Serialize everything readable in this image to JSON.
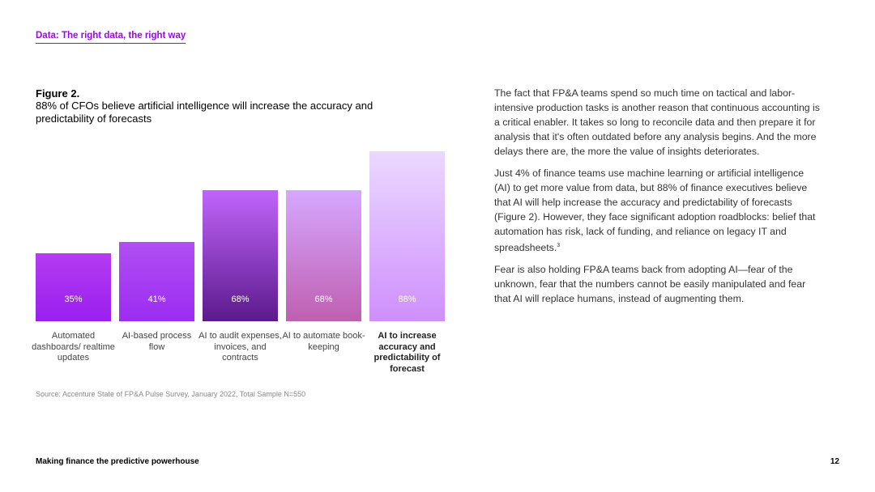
{
  "header": {
    "section_title": "Data: The right data, the right way"
  },
  "figure": {
    "label": "Figure 2.",
    "title": "88% of CFOs believe artificial intelligence will increase the accuracy and predictability of forecasts",
    "source": "Source: Accenture State of FP&A Pulse Survey, January 2022, Total Sample N=550"
  },
  "chart_data": {
    "type": "bar",
    "categories": [
      "Automated dashboards/ realtime updates",
      "AI-based process flow",
      "AI to audit expenses, invoices, and contracts",
      "AI to automate book-keeping",
      "AI to increase accuracy and predictability of forecast"
    ],
    "values": [
      35,
      41,
      68,
      68,
      88
    ],
    "value_labels": [
      "35%",
      "41%",
      "68%",
      "68%",
      "88%"
    ],
    "highlighted_category": "AI to increase accuracy and predictability of forecast",
    "unit": "%",
    "ylim": [
      0,
      100
    ],
    "grid": false,
    "legend": "none",
    "colors": {
      "bar1": [
        "#b43cf0",
        "#9a1ff0"
      ],
      "bar2": [
        "#b04ff2",
        "#9c2cf2"
      ],
      "bar3": [
        "#c165fb",
        "#5b1a8c"
      ],
      "bar4": [
        "#d6a8ff",
        "#bf5fb1"
      ],
      "bar5": [
        "#ead9ff",
        "#cf8ffc"
      ]
    }
  },
  "body": {
    "paragraphs": [
      "The fact that FP&A teams spend so much time on tactical and labor-intensive production tasks is another reason that continuous accounting is a critical enabler. It takes so long to reconcile data and then prepare it for analysis that it's often outdated before any analysis begins. And the more delays there are, the more the value of insights deteriorates.",
      "Just 4% of finance teams use machine learning or artificial intelligence (AI) to get more value from data, but 88% of finance executives believe that AI will help increase the accuracy and predictability of forecasts (Figure 2). However, they face significant adoption roadblocks: belief that automation has risk, lack of funding, and reliance on legacy IT and spreadsheets.",
      "Fear is also holding FP&A teams back from adopting AI—fear of the unknown, fear that the numbers cannot be easily manipulated and fear that AI will replace humans, instead of augmenting them."
    ],
    "footnote_ref": "3"
  },
  "footer": {
    "title": "Making finance the predictive powerhouse",
    "page_number": "12"
  }
}
